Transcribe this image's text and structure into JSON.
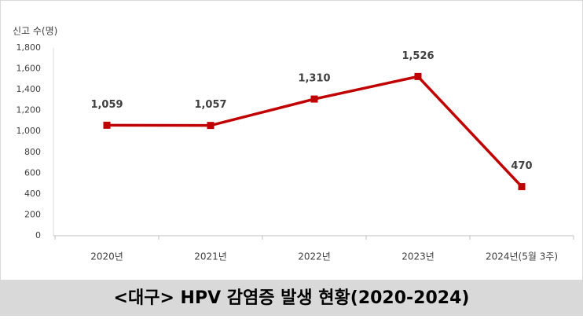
{
  "chart_data": {
    "type": "line",
    "title": "<대구> HPV 감염증 발생 현황(2020-2024)",
    "y_label": "신고 수(명)",
    "categories": [
      "2020년",
      "2021년",
      "2022년",
      "2023년",
      "2024년(5월 3주)"
    ],
    "series": [
      {
        "name": "신고 수",
        "color": "#c00000",
        "values": [
          1059,
          1057,
          1310,
          1526,
          470
        ],
        "value_labels": [
          "1,059",
          "1,057",
          "1,310",
          "1,526",
          "470"
        ]
      }
    ],
    "ylim": [
      0,
      1800
    ],
    "yticks": [
      0,
      200,
      400,
      600,
      800,
      {
        "value": 1000,
        "label": "1,000"
      },
      {
        "value": 1200,
        "label": "1,200"
      },
      {
        "value": 1400,
        "label": "1,400"
      },
      {
        "value": 1600,
        "label": "1,600"
      },
      {
        "value": 1800,
        "label": "1,800"
      }
    ],
    "grid": false
  }
}
